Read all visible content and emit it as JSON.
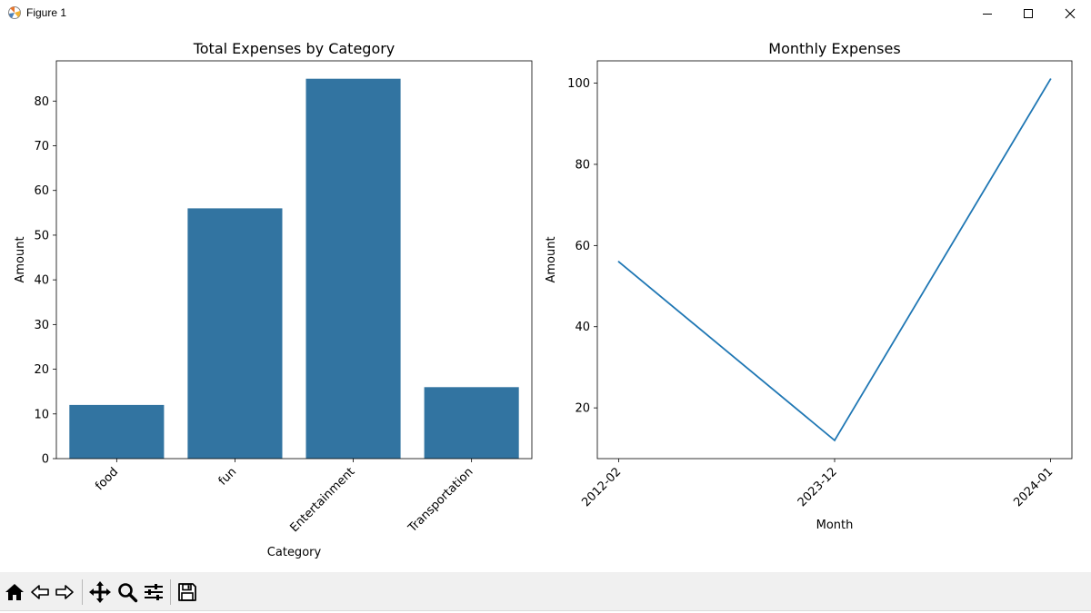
{
  "window": {
    "title": "Figure 1",
    "icon": "matplotlib-icon",
    "controls": [
      "minimize-icon",
      "maximize-icon",
      "close-icon"
    ]
  },
  "toolbar": {
    "tools": [
      {
        "name": "home",
        "icon": "home-icon"
      },
      {
        "name": "back",
        "icon": "arrow-left-icon"
      },
      {
        "name": "forward",
        "icon": "arrow-right-icon"
      },
      {
        "name": "pan",
        "icon": "move-icon"
      },
      {
        "name": "zoom",
        "icon": "magnifier-icon"
      },
      {
        "name": "configure",
        "icon": "sliders-icon"
      },
      {
        "name": "save",
        "icon": "floppy-icon"
      }
    ]
  },
  "chart_data": [
    {
      "type": "bar",
      "title": "Total Expenses by Category",
      "xlabel": "Category",
      "ylabel": "Amount",
      "categories": [
        "food",
        "fun",
        "Entertainment",
        "Transportation"
      ],
      "values": [
        12,
        56,
        85,
        16
      ],
      "ylim": [
        0,
        89
      ],
      "yticks": [
        0,
        10,
        20,
        30,
        40,
        50,
        60,
        70,
        80
      ],
      "grid": false,
      "color": "#3274a1"
    },
    {
      "type": "line",
      "title": "Monthly Expenses",
      "xlabel": "Month",
      "ylabel": "Amount",
      "x": [
        "2012-02",
        "2023-12",
        "2024-01"
      ],
      "values": [
        56,
        12,
        101
      ],
      "ylim": [
        7.5,
        105.5
      ],
      "yticks": [
        20,
        40,
        60,
        80,
        100
      ],
      "grid": false,
      "color": "#1f77b4"
    }
  ]
}
